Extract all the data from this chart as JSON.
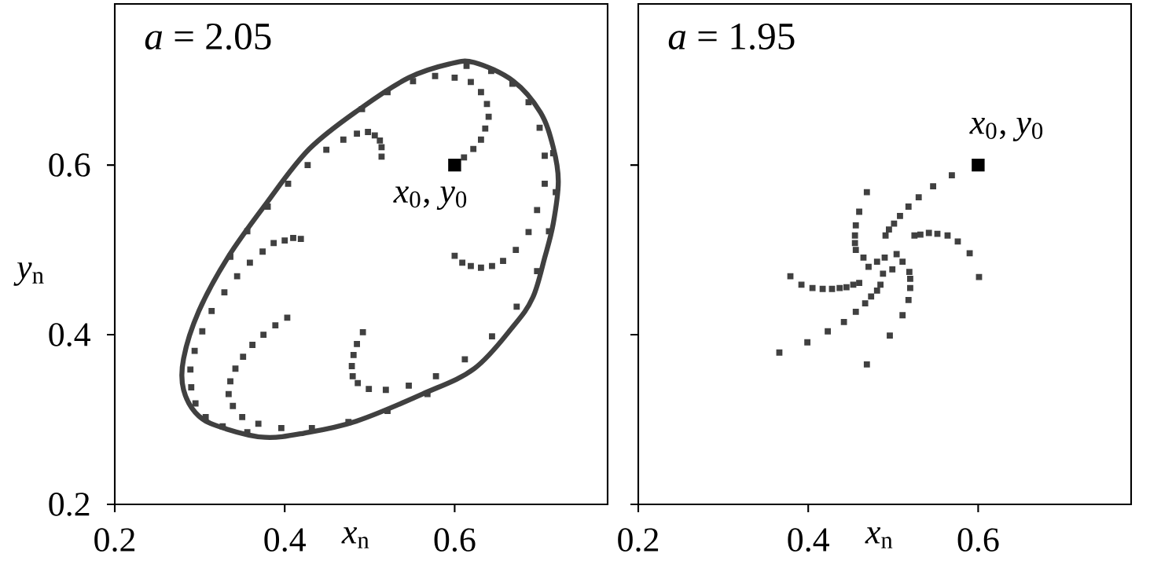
{
  "chart_data": [
    {
      "type": "scatter",
      "title": "*a* = 2.05",
      "xlabel": "*x*$_{n}$",
      "ylabel": "*y*$_{n}$",
      "xlim": [
        0.2,
        0.78
      ],
      "ylim": [
        0.2,
        0.79
      ],
      "xticks": [
        0.2,
        0.4,
        0.6
      ],
      "yticks": [
        0.2,
        0.4,
        0.6
      ],
      "grid": false,
      "annotations": [
        {
          "text": "*x*$_{0}$, *y*$_{0}$",
          "x": 0.6,
          "y": 0.6
        }
      ],
      "series": [
        {
          "color": "#404040",
          "marker": "square",
          "x": [
            0.611,
            0.622,
            0.631,
            0.636,
            0.64,
            0.638,
            0.631,
            0.619,
            0.6,
            0.577,
            0.551,
            0.521,
            0.491,
            0.614,
            0.643,
            0.668,
            0.687,
            0.7,
            0.716,
            0.706,
            0.706,
            0.697,
            0.687,
            0.672,
            0.657,
            0.644,
            0.631,
            0.619,
            0.609,
            0.6,
            0.719,
            0.711,
            0.697,
            0.673,
            0.644,
            0.612,
            0.578,
            0.546,
            0.519,
            0.499,
            0.486,
            0.48,
            0.479,
            0.481,
            0.485,
            0.492,
            0.568,
            0.521,
            0.475,
            0.432,
            0.396,
            0.356,
            0.369,
            0.327,
            0.35,
            0.307,
            0.339,
            0.295,
            0.334,
            0.29,
            0.336,
            0.289,
            0.342,
            0.294,
            0.351,
            0.303,
            0.362,
            0.314,
            0.375,
            0.389,
            0.403,
            0.329,
            0.344,
            0.359,
            0.374,
            0.387,
            0.4,
            0.41,
            0.419,
            0.336,
            0.356,
            0.38,
            0.404,
            0.427,
            0.449,
            0.469,
            0.485,
            0.498,
            0.506,
            0.512,
            0.514,
            0.514
          ],
          "values": [
            0.609,
            0.619,
            0.63,
            0.643,
            0.657,
            0.672,
            0.686,
            0.698,
            0.703,
            0.705,
            0.699,
            0.686,
            0.666,
            0.717,
            0.711,
            0.696,
            0.674,
            0.644,
            0.614,
            0.611,
            0.578,
            0.547,
            0.521,
            0.5,
            0.487,
            0.481,
            0.479,
            0.481,
            0.485,
            0.493,
            0.568,
            0.522,
            0.475,
            0.433,
            0.398,
            0.371,
            0.351,
            0.34,
            0.335,
            0.336,
            0.343,
            0.351,
            0.363,
            0.376,
            0.389,
            0.403,
            0.33,
            0.31,
            0.297,
            0.29,
            0.29,
            0.285,
            0.295,
            0.292,
            0.303,
            0.303,
            0.316,
            0.319,
            0.33,
            0.338,
            0.345,
            0.359,
            0.36,
            0.381,
            0.374,
            0.404,
            0.388,
            0.428,
            0.4,
            0.411,
            0.42,
            0.45,
            0.469,
            0.485,
            0.498,
            0.508,
            0.511,
            0.514,
            0.513,
            0.492,
            0.522,
            0.551,
            0.578,
            0.6,
            0.618,
            0.63,
            0.637,
            0.639,
            0.635,
            0.629,
            0.621,
            0.61
          ]
        },
        {
          "color": "#000000",
          "marker": "square",
          "x": [
            0.6
          ],
          "values": [
            0.6
          ]
        }
      ]
    },
    {
      "type": "scatter",
      "title": "*a* = 1.95",
      "xlabel": "*x*$_{n}$",
      "xlim": [
        0.2,
        0.78
      ],
      "ylim": [
        0.2,
        0.79
      ],
      "xticks": [
        0.2,
        0.4,
        0.6
      ],
      "yticks": [
        0.2,
        0.4,
        0.6
      ],
      "tick_labels": "x",
      "grid": false,
      "annotations": [
        {
          "text": "*x*$_{0}$, *y*$_{0}$",
          "x": 0.6,
          "y": 0.6
        }
      ],
      "series": [
        {
          "color": "#404040",
          "marker": "square",
          "x": [
            0.569,
            0.547,
            0.53,
            0.518,
            0.508,
            0.501,
            0.495,
            0.491,
            0.469,
            0.46,
            0.456,
            0.455,
            0.455,
            0.456,
            0.525,
            0.532,
            0.542,
            0.552,
            0.564,
            0.576,
            0.59,
            0.601,
            0.379,
            0.392,
            0.405,
            0.417,
            0.428,
            0.437,
            0.445,
            0.453,
            0.46,
            0.519,
            0.52,
            0.52,
            0.518,
            0.511,
            0.496,
            0.469,
            0.366,
            0.399,
            0.423,
            0.442,
            0.456,
            0.467,
            0.474,
            0.481,
            0.485,
            0.481,
            0.471,
            0.49,
            0.504,
            0.511,
            0.499,
            0.465,
            0.488
          ],
          "values": [
            0.588,
            0.575,
            0.562,
            0.551,
            0.54,
            0.531,
            0.524,
            0.517,
            0.568,
            0.545,
            0.529,
            0.517,
            0.508,
            0.5,
            0.517,
            0.518,
            0.52,
            0.519,
            0.517,
            0.51,
            0.496,
            0.468,
            0.469,
            0.459,
            0.455,
            0.454,
            0.454,
            0.455,
            0.456,
            0.459,
            0.461,
            0.474,
            0.466,
            0.455,
            0.441,
            0.423,
            0.399,
            0.365,
            0.379,
            0.391,
            0.404,
            0.415,
            0.427,
            0.437,
            0.445,
            0.452,
            0.459,
            0.486,
            0.48,
            0.491,
            0.495,
            0.486,
            0.477,
            0.491,
            0.472
          ]
        },
        {
          "color": "#000000",
          "marker": "square",
          "x": [
            0.6
          ],
          "values": [
            0.6
          ]
        }
      ]
    }
  ]
}
